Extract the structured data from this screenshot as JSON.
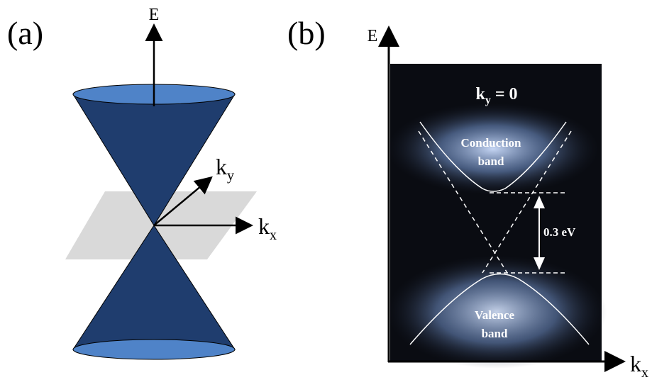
{
  "panels": [
    {
      "label": "(a)",
      "axes": {
        "e": "E",
        "ky": {
          "base": "k",
          "sub": "y"
        },
        "kx": {
          "base": "k",
          "sub": "x"
        }
      }
    },
    {
      "label": "(b)",
      "axes": {
        "e": "E",
        "kx": {
          "base": "k",
          "sub": "x"
        }
      },
      "title": {
        "base": "k",
        "sub": "y",
        "rest": "= 0"
      },
      "conduction": [
        "Conduction",
        "band"
      ],
      "gap": "0.3 eV",
      "valence": [
        "Valence",
        "band"
      ]
    }
  ]
}
